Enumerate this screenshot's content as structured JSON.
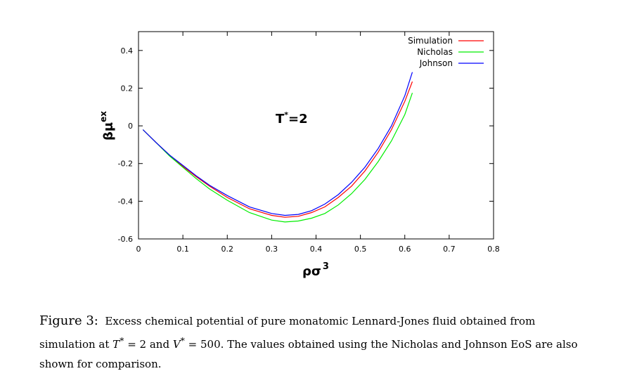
{
  "chart_data": {
    "type": "line",
    "x_label_text": "ρσ",
    "x_label_exponent": "3",
    "y_label_text": "βμ",
    "y_label_superscript": "ex",
    "annotation": {
      "symbol": "T",
      "superscript": "*",
      "value": "=2"
    },
    "xlim": [
      0,
      0.8
    ],
    "ylim": [
      -0.6,
      0.5
    ],
    "x_ticks": [
      0,
      0.1,
      0.2,
      0.3,
      0.4,
      0.5,
      0.6,
      0.7,
      0.8
    ],
    "x_tick_labels": [
      "0",
      "0.1",
      "0.2",
      "0.3",
      "0.4",
      "0.5",
      "0.6",
      "0.7",
      "0.8"
    ],
    "y_ticks": [
      -0.6,
      -0.4,
      -0.2,
      0,
      0.2,
      0.4
    ],
    "y_tick_labels": [
      "-0.6",
      "-0.4",
      "-0.2",
      "0",
      "0.2",
      "0.4"
    ],
    "legend_position": "top-right",
    "grid": false,
    "series": [
      {
        "name": "Simulation",
        "color": "#ff0000",
        "x": [
          0.01,
          0.04,
          0.07,
          0.1,
          0.13,
          0.16,
          0.2,
          0.25,
          0.3,
          0.33,
          0.36,
          0.39,
          0.42,
          0.45,
          0.48,
          0.51,
          0.54,
          0.57,
          0.6,
          0.617
        ],
        "y": [
          -0.02,
          -0.09,
          -0.155,
          -0.215,
          -0.27,
          -0.32,
          -0.38,
          -0.44,
          -0.475,
          -0.485,
          -0.48,
          -0.46,
          -0.43,
          -0.38,
          -0.32,
          -0.24,
          -0.14,
          -0.02,
          0.13,
          0.235
        ]
      },
      {
        "name": "Nicholas",
        "color": "#00ee00",
        "x": [
          0.01,
          0.04,
          0.07,
          0.1,
          0.13,
          0.16,
          0.2,
          0.25,
          0.3,
          0.33,
          0.36,
          0.39,
          0.42,
          0.45,
          0.48,
          0.51,
          0.54,
          0.57,
          0.6,
          0.617
        ],
        "y": [
          -0.02,
          -0.09,
          -0.16,
          -0.22,
          -0.28,
          -0.335,
          -0.395,
          -0.46,
          -0.5,
          -0.51,
          -0.505,
          -0.49,
          -0.465,
          -0.42,
          -0.36,
          -0.285,
          -0.19,
          -0.08,
          0.06,
          0.175
        ]
      },
      {
        "name": "Johnson",
        "color": "#0000ff",
        "x": [
          0.01,
          0.04,
          0.07,
          0.1,
          0.13,
          0.16,
          0.2,
          0.25,
          0.3,
          0.33,
          0.36,
          0.39,
          0.42,
          0.45,
          0.48,
          0.51,
          0.54,
          0.57,
          0.6,
          0.617
        ],
        "y": [
          -0.02,
          -0.09,
          -0.155,
          -0.21,
          -0.265,
          -0.315,
          -0.37,
          -0.43,
          -0.465,
          -0.475,
          -0.47,
          -0.45,
          -0.415,
          -0.365,
          -0.3,
          -0.22,
          -0.12,
          0.0,
          0.16,
          0.285
        ]
      }
    ]
  },
  "caption": {
    "label": "Figure 3:",
    "text_1": "Excess chemical potential of pure monatomic Lennard-Jones fluid obtained from simulation at ",
    "t_symbol": "T",
    "t_sup": "*",
    "t_value": " = 2 and ",
    "v_symbol": "V",
    "v_sup": "*",
    "v_value": " = 500.",
    "text_2": " The values obtained using the Nicholas and Johnson EoS are also shown for comparison."
  }
}
